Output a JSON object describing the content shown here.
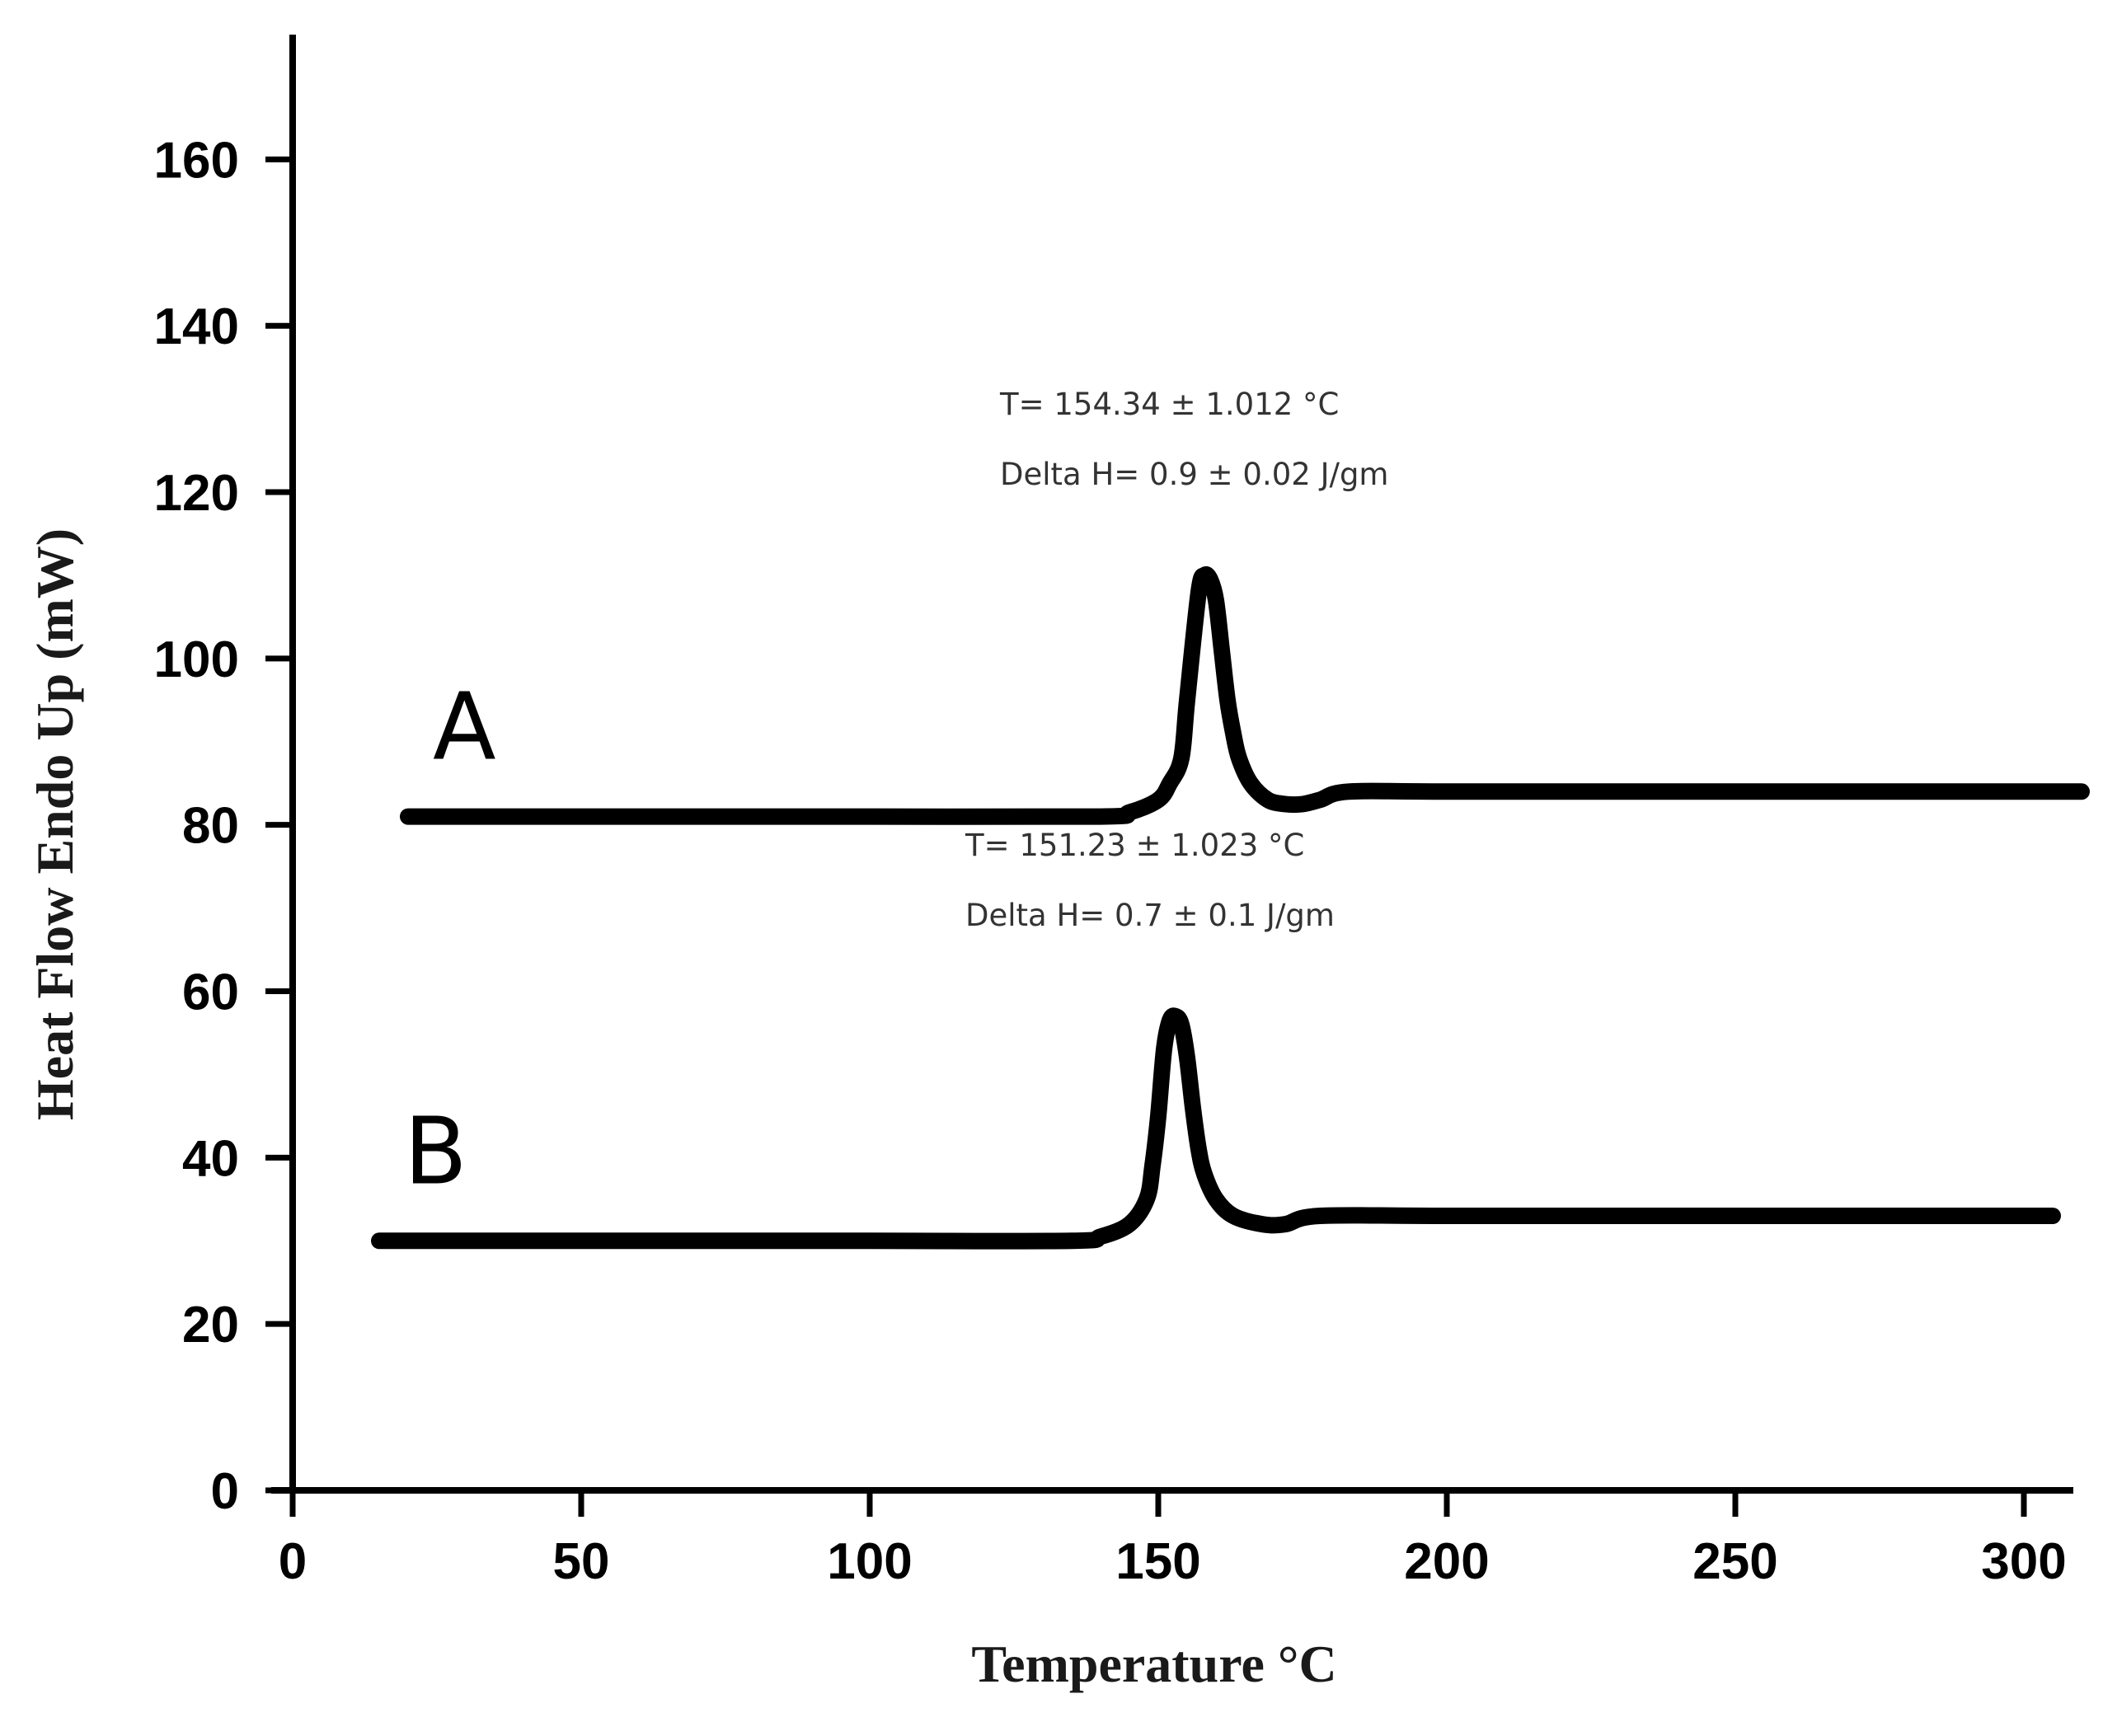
{
  "chart_data": {
    "type": "line",
    "title": "",
    "xlabel": "Temperature °C",
    "ylabel": "Heat Flow Endo Up (mW)",
    "xlim": [
      0,
      310
    ],
    "ylim": [
      0,
      175
    ],
    "x_ticks": [
      "0",
      "50",
      "100",
      "150",
      "200",
      "250",
      "300"
    ],
    "y_ticks": [
      "0",
      "20",
      "40",
      "60",
      "80",
      "100",
      "120",
      "140",
      "160"
    ],
    "grid": false,
    "series": [
      {
        "name": "A",
        "label": "A",
        "x": [
          20,
          60,
          100,
          140,
          145,
          150,
          152,
          154,
          155,
          157,
          158,
          159,
          160,
          161,
          162,
          163,
          164,
          166,
          169,
          172,
          175,
          178,
          183,
          200,
          250,
          310
        ],
        "y": [
          81,
          81,
          81,
          81,
          81.5,
          83,
          85,
          88,
          95,
          108,
          110,
          109.5,
          107,
          101,
          95,
          91,
          88,
          85,
          83,
          82.5,
          82.5,
          83,
          84,
          84,
          84,
          84
        ]
      },
      {
        "name": "B",
        "label": "B",
        "x": [
          15,
          60,
          100,
          135,
          140,
          145,
          148,
          149,
          150,
          151,
          152,
          153,
          154,
          155,
          156,
          157,
          158,
          160,
          163,
          168,
          172,
          178,
          200,
          250,
          305
        ],
        "y": [
          30,
          30,
          30,
          30,
          30.5,
          32,
          35,
          39,
          45,
          53,
          56.5,
          57,
          56,
          52,
          46,
          41,
          38,
          35,
          33,
          32,
          32,
          33,
          33,
          33,
          33
        ]
      }
    ],
    "annotations": [
      {
        "series": "A",
        "x": 159,
        "y": 110,
        "line1": "T= 154.34 ± 1.012 °C",
        "line2": "Delta H= 0.9 ± 0.02 J/gm"
      },
      {
        "series": "B",
        "x": 153,
        "y": 57,
        "line1": "T= 151.23 ± 1.023 °C",
        "line2": "Delta H= 0.7 ± 0.1 J/gm"
      }
    ]
  }
}
